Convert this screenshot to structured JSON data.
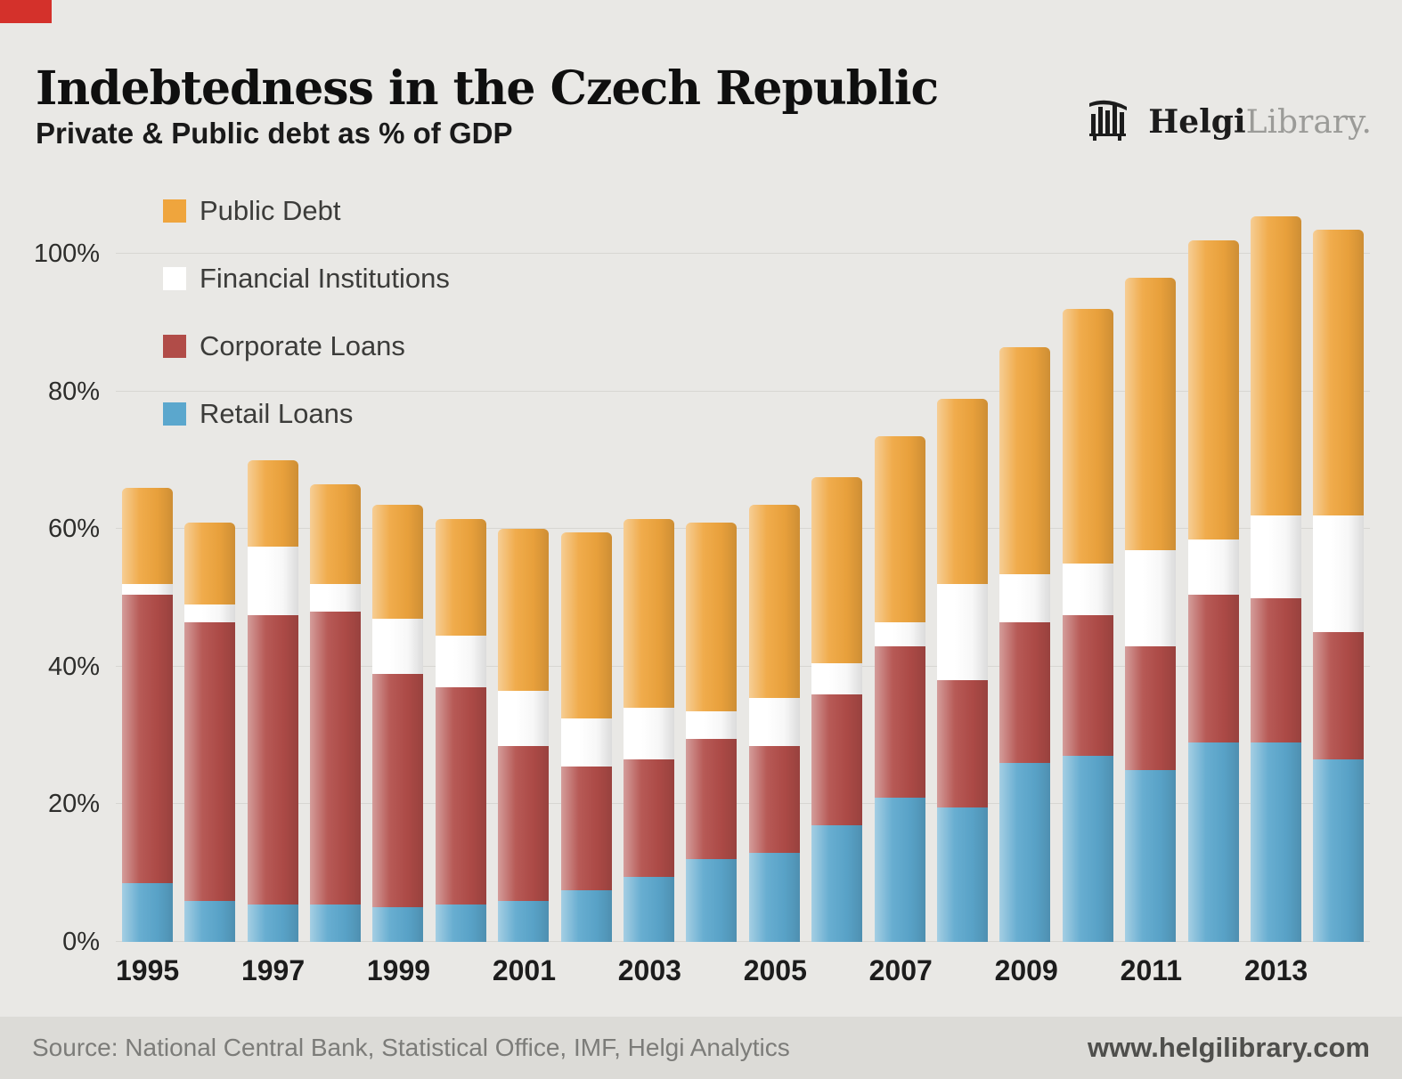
{
  "page": {
    "title": "Indebtedness in the Czech Republic",
    "subtitle": "Private & Public debt as % of GDP",
    "source": "Source: National Central Bank, Statistical Office, IMF, Helgi Analytics",
    "website": "www.helgilibrary.com",
    "logo": {
      "bold": "Helgi",
      "light": "Library."
    }
  },
  "colors": {
    "background": "#e9e8e5",
    "footer_background": "#dcdbd7",
    "corner_accent": "#d4312b",
    "gridline": "#d7d6d2"
  },
  "chart_data": {
    "type": "bar",
    "stacked": true,
    "title": "Indebtedness in the Czech Republic",
    "subtitle": "Private & Public debt as % of GDP",
    "xlabel": "",
    "ylabel": "% of GDP",
    "ylim": [
      0,
      110
    ],
    "yticks": [
      0,
      20,
      40,
      60,
      80,
      100
    ],
    "ytick_labels": [
      "0%",
      "20%",
      "40%",
      "60%",
      "80%",
      "100%"
    ],
    "grid": true,
    "legend_position": "top-left",
    "legend_order": [
      "Public Debt",
      "Financial Institutions",
      "Corporate Loans",
      "Retail Loans"
    ],
    "categories": [
      1995,
      1996,
      1997,
      1998,
      1999,
      2000,
      2001,
      2002,
      2003,
      2004,
      2005,
      2006,
      2007,
      2008,
      2009,
      2010,
      2011,
      2012,
      2013,
      2014
    ],
    "x_tick_labels_shown": [
      "1995",
      "1997",
      "1999",
      "2001",
      "2003",
      "2005",
      "2007",
      "2009",
      "2011",
      "2013"
    ],
    "series": [
      {
        "name": "Retail Loans",
        "color": "#5ba7cd",
        "values": [
          8.5,
          6,
          5.5,
          5.5,
          5,
          5.5,
          6,
          7.5,
          9.5,
          12,
          13,
          17,
          21,
          19.5,
          26,
          27,
          25,
          29,
          29,
          26.5
        ]
      },
      {
        "name": "Corporate Loans",
        "color": "#b14c48",
        "values": [
          42,
          40.5,
          42,
          42.5,
          34,
          31.5,
          22.5,
          18,
          17,
          17.5,
          15.5,
          19,
          22,
          18.5,
          20.5,
          20.5,
          18,
          21.5,
          21,
          18.5
        ]
      },
      {
        "name": "Financial Institutions",
        "color": "#ffffff",
        "values": [
          1.5,
          2.5,
          10,
          4,
          8,
          7.5,
          8,
          7,
          7.5,
          4,
          7,
          4.5,
          3.5,
          14,
          7,
          7.5,
          14,
          8,
          12,
          17
        ]
      },
      {
        "name": "Public Debt",
        "color": "#efa53d",
        "values": [
          14,
          12,
          12.5,
          14.5,
          16.5,
          17,
          23.5,
          27,
          27.5,
          27.5,
          28,
          27,
          27,
          27,
          33,
          37,
          39.5,
          43.5,
          43.5,
          41.5
        ]
      }
    ]
  }
}
